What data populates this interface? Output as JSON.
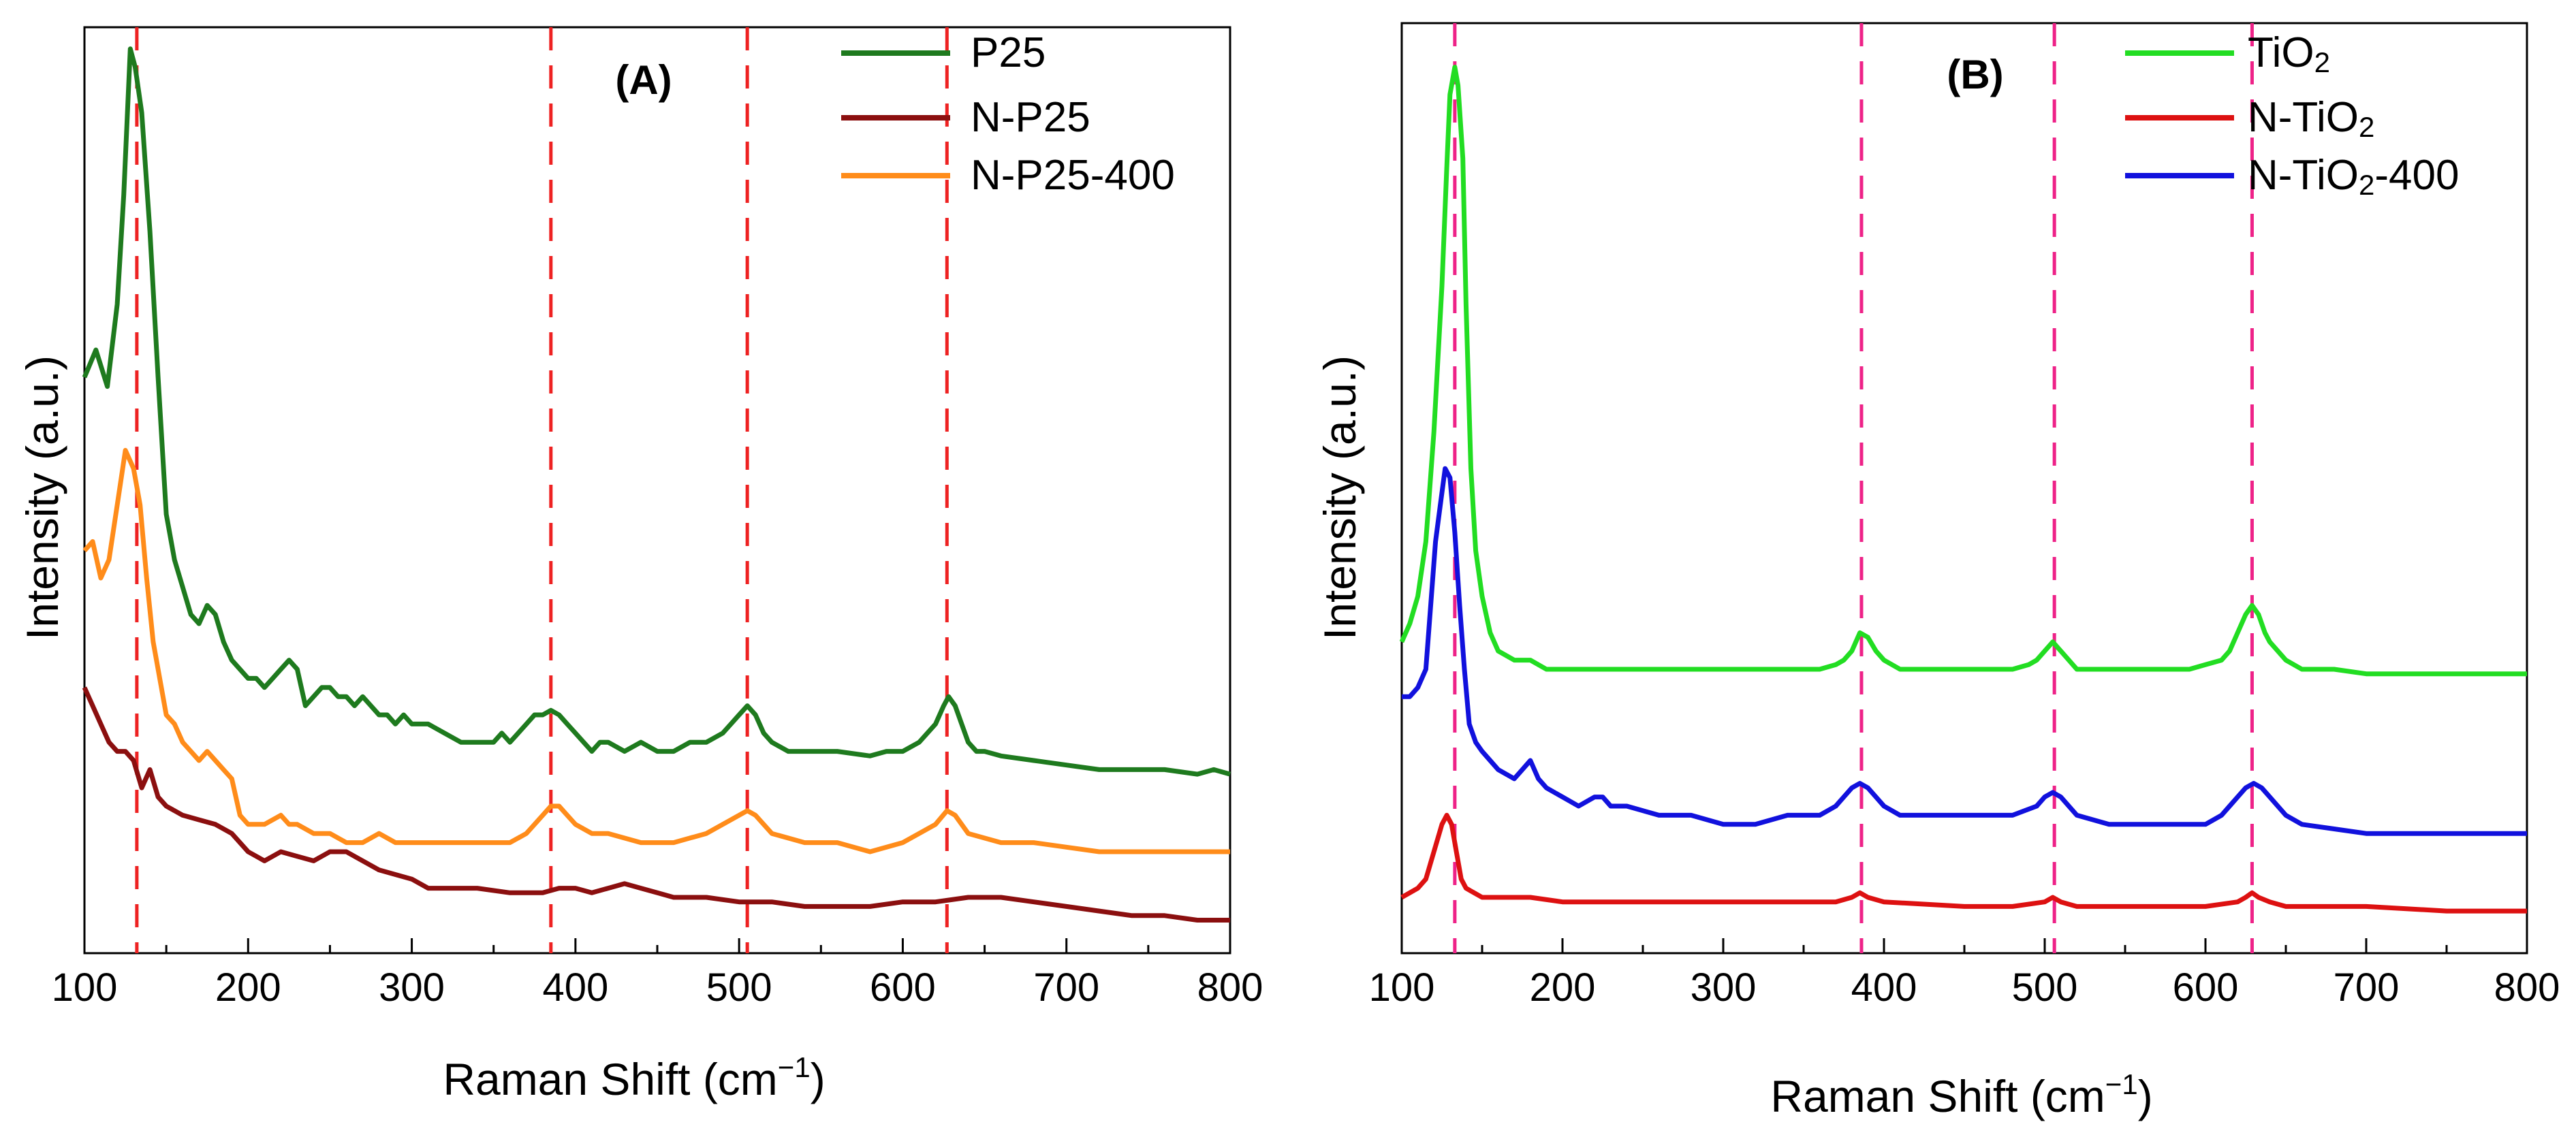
{
  "chart_data": [
    {
      "type": "line",
      "panel_label": "(A)",
      "xlabel_main": "Raman Shift (cm",
      "xlabel_sup": "−1",
      "xlabel_close": ")",
      "ylabel": "Intensity (a.u.)",
      "xlim": [
        100,
        800
      ],
      "ylim": [
        0,
        1
      ],
      "xticks": [
        100,
        200,
        300,
        400,
        500,
        600,
        700,
        800
      ],
      "xtick_labels": [
        "100",
        "200",
        "300",
        "400",
        "500",
        "600",
        "700",
        "800"
      ],
      "yticks_visible": false,
      "grid": false,
      "legend_position": "top-right",
      "reference_lines": {
        "color": "#ee2222",
        "style": "dashed",
        "x": [
          132,
          385,
          505,
          627
        ]
      },
      "series": [
        {
          "name": "P25",
          "color": "#1e7a1e",
          "x": [
            100,
            107,
            114,
            120,
            124,
            128,
            131,
            135,
            140,
            145,
            150,
            155,
            160,
            165,
            170,
            175,
            180,
            185,
            190,
            195,
            200,
            205,
            210,
            215,
            220,
            225,
            230,
            235,
            240,
            245,
            250,
            255,
            260,
            265,
            270,
            275,
            280,
            285,
            290,
            295,
            300,
            310,
            320,
            330,
            340,
            350,
            355,
            360,
            365,
            370,
            375,
            380,
            385,
            390,
            395,
            400,
            405,
            410,
            415,
            420,
            430,
            440,
            450,
            460,
            470,
            480,
            490,
            495,
            500,
            505,
            510,
            515,
            520,
            530,
            540,
            560,
            580,
            590,
            600,
            610,
            615,
            620,
            625,
            628,
            632,
            636,
            640,
            645,
            650,
            660,
            680,
            700,
            720,
            740,
            760,
            780,
            790,
            800
          ],
          "y": [
            0.62,
            0.65,
            0.61,
            0.7,
            0.82,
            0.98,
            0.96,
            0.91,
            0.78,
            0.62,
            0.47,
            0.42,
            0.39,
            0.36,
            0.35,
            0.37,
            0.36,
            0.33,
            0.31,
            0.3,
            0.29,
            0.29,
            0.28,
            0.29,
            0.3,
            0.31,
            0.3,
            0.26,
            0.27,
            0.28,
            0.28,
            0.27,
            0.27,
            0.26,
            0.27,
            0.26,
            0.25,
            0.25,
            0.24,
            0.25,
            0.24,
            0.24,
            0.23,
            0.22,
            0.22,
            0.22,
            0.23,
            0.22,
            0.23,
            0.24,
            0.25,
            0.25,
            0.255,
            0.25,
            0.24,
            0.23,
            0.22,
            0.21,
            0.22,
            0.22,
            0.21,
            0.22,
            0.21,
            0.21,
            0.22,
            0.22,
            0.23,
            0.24,
            0.25,
            0.26,
            0.25,
            0.23,
            0.22,
            0.21,
            0.21,
            0.21,
            0.205,
            0.21,
            0.21,
            0.22,
            0.23,
            0.24,
            0.26,
            0.27,
            0.26,
            0.24,
            0.22,
            0.21,
            0.21,
            0.205,
            0.2,
            0.195,
            0.19,
            0.19,
            0.19,
            0.185,
            0.19,
            0.185
          ]
        },
        {
          "name": "N-P25",
          "color": "#8b0f0f",
          "x": [
            100,
            105,
            110,
            115,
            120,
            125,
            130,
            135,
            140,
            145,
            150,
            160,
            170,
            180,
            190,
            200,
            210,
            220,
            230,
            240,
            250,
            260,
            270,
            280,
            290,
            300,
            310,
            320,
            340,
            360,
            380,
            390,
            400,
            410,
            420,
            430,
            440,
            450,
            460,
            480,
            500,
            520,
            540,
            560,
            580,
            600,
            620,
            640,
            660,
            680,
            700,
            720,
            740,
            760,
            780,
            800
          ],
          "y": [
            0.28,
            0.26,
            0.24,
            0.22,
            0.21,
            0.21,
            0.2,
            0.17,
            0.19,
            0.16,
            0.15,
            0.14,
            0.135,
            0.13,
            0.12,
            0.1,
            0.09,
            0.1,
            0.095,
            0.09,
            0.1,
            0.1,
            0.09,
            0.08,
            0.075,
            0.07,
            0.06,
            0.06,
            0.06,
            0.055,
            0.055,
            0.06,
            0.06,
            0.055,
            0.06,
            0.065,
            0.06,
            0.055,
            0.05,
            0.05,
            0.045,
            0.045,
            0.04,
            0.04,
            0.04,
            0.045,
            0.045,
            0.05,
            0.05,
            0.045,
            0.04,
            0.035,
            0.03,
            0.03,
            0.025,
            0.025
          ]
        },
        {
          "name": "N-P25-400",
          "color": "#ff8c1a",
          "x": [
            100,
            105,
            110,
            115,
            120,
            125,
            130,
            134,
            138,
            142,
            146,
            150,
            155,
            160,
            165,
            170,
            175,
            180,
            185,
            190,
            195,
            200,
            210,
            220,
            225,
            230,
            240,
            250,
            260,
            270,
            280,
            290,
            300,
            320,
            340,
            360,
            370,
            380,
            385,
            390,
            395,
            400,
            410,
            420,
            440,
            460,
            480,
            490,
            500,
            505,
            510,
            520,
            540,
            560,
            580,
            600,
            610,
            620,
            627,
            632,
            640,
            660,
            680,
            700,
            720,
            740,
            760,
            780,
            800
          ],
          "y": [
            0.43,
            0.44,
            0.4,
            0.42,
            0.48,
            0.54,
            0.52,
            0.48,
            0.4,
            0.33,
            0.29,
            0.25,
            0.24,
            0.22,
            0.21,
            0.2,
            0.21,
            0.2,
            0.19,
            0.18,
            0.14,
            0.13,
            0.13,
            0.14,
            0.13,
            0.13,
            0.12,
            0.12,
            0.11,
            0.11,
            0.12,
            0.11,
            0.11,
            0.11,
            0.11,
            0.11,
            0.12,
            0.14,
            0.15,
            0.15,
            0.14,
            0.13,
            0.12,
            0.12,
            0.11,
            0.11,
            0.12,
            0.13,
            0.14,
            0.145,
            0.14,
            0.12,
            0.11,
            0.11,
            0.1,
            0.11,
            0.12,
            0.13,
            0.145,
            0.14,
            0.12,
            0.11,
            0.11,
            0.105,
            0.1,
            0.1,
            0.1,
            0.1,
            0.1
          ]
        }
      ]
    },
    {
      "type": "line",
      "panel_label": "(B)",
      "xlabel_main": "Raman Shift (cm",
      "xlabel_sup": "−1",
      "xlabel_close": ")",
      "ylabel": "Intensity (a.u.)",
      "xlim": [
        100,
        800
      ],
      "ylim": [
        0,
        1
      ],
      "xticks": [
        100,
        200,
        300,
        400,
        500,
        600,
        700,
        800
      ],
      "xtick_labels": [
        "100",
        "200",
        "300",
        "400",
        "500",
        "600",
        "700",
        "800"
      ],
      "yticks_visible": false,
      "grid": false,
      "legend_position": "top-right",
      "reference_lines": {
        "color": "#ee2288",
        "style": "dashed",
        "x": [
          133,
          386,
          506,
          629
        ]
      },
      "series": [
        {
          "name": "TiO₂",
          "legend_base": "TiO",
          "legend_sub": "2",
          "legend_suffix": "",
          "color": "#22dd22",
          "x": [
            100,
            105,
            110,
            115,
            120,
            125,
            128,
            130,
            133,
            135,
            138,
            140,
            143,
            146,
            150,
            155,
            160,
            170,
            180,
            190,
            200,
            250,
            300,
            350,
            360,
            370,
            375,
            380,
            385,
            390,
            395,
            400,
            410,
            420,
            450,
            480,
            490,
            495,
            500,
            505,
            510,
            515,
            520,
            530,
            560,
            590,
            600,
            610,
            615,
            620,
            625,
            629,
            633,
            637,
            640,
            645,
            650,
            660,
            680,
            700,
            750,
            800
          ],
          "y": [
            0.33,
            0.35,
            0.38,
            0.44,
            0.56,
            0.72,
            0.85,
            0.93,
            0.96,
            0.94,
            0.86,
            0.7,
            0.52,
            0.43,
            0.38,
            0.34,
            0.32,
            0.31,
            0.31,
            0.3,
            0.3,
            0.3,
            0.3,
            0.3,
            0.3,
            0.305,
            0.31,
            0.32,
            0.34,
            0.335,
            0.32,
            0.31,
            0.3,
            0.3,
            0.3,
            0.3,
            0.305,
            0.31,
            0.32,
            0.33,
            0.32,
            0.31,
            0.3,
            0.3,
            0.3,
            0.3,
            0.305,
            0.31,
            0.32,
            0.34,
            0.36,
            0.37,
            0.36,
            0.34,
            0.33,
            0.32,
            0.31,
            0.3,
            0.3,
            0.295,
            0.295,
            0.295
          ]
        },
        {
          "name": "N-TiO₂",
          "legend_base": "N-TiO",
          "legend_sub": "2",
          "legend_suffix": "",
          "color": "#dd1111",
          "x": [
            100,
            105,
            110,
            115,
            120,
            125,
            128,
            131,
            134,
            137,
            140,
            145,
            150,
            160,
            180,
            200,
            250,
            300,
            350,
            370,
            380,
            385,
            390,
            400,
            450,
            480,
            500,
            505,
            510,
            520,
            550,
            600,
            620,
            625,
            629,
            633,
            640,
            650,
            700,
            750,
            800
          ],
          "y": [
            0.05,
            0.055,
            0.06,
            0.07,
            0.1,
            0.13,
            0.14,
            0.13,
            0.1,
            0.07,
            0.06,
            0.055,
            0.05,
            0.05,
            0.05,
            0.045,
            0.045,
            0.045,
            0.045,
            0.045,
            0.05,
            0.055,
            0.05,
            0.045,
            0.04,
            0.04,
            0.045,
            0.05,
            0.045,
            0.04,
            0.04,
            0.04,
            0.045,
            0.05,
            0.055,
            0.05,
            0.045,
            0.04,
            0.04,
            0.035,
            0.035
          ]
        },
        {
          "name": "N-TiO₂-400",
          "legend_base": "N-TiO",
          "legend_sub": "2",
          "legend_suffix": "-400",
          "color": "#1111dd",
          "x": [
            100,
            105,
            110,
            115,
            118,
            121,
            124,
            127,
            130,
            133,
            136,
            139,
            142,
            146,
            150,
            155,
            160,
            170,
            175,
            180,
            185,
            190,
            200,
            210,
            220,
            225,
            230,
            240,
            260,
            280,
            300,
            320,
            340,
            360,
            370,
            375,
            380,
            385,
            390,
            395,
            400,
            410,
            430,
            460,
            480,
            495,
            500,
            505,
            510,
            520,
            540,
            580,
            600,
            610,
            615,
            620,
            625,
            630,
            635,
            640,
            650,
            660,
            700,
            750,
            800
          ],
          "y": [
            0.27,
            0.27,
            0.28,
            0.3,
            0.37,
            0.44,
            0.48,
            0.52,
            0.51,
            0.45,
            0.37,
            0.3,
            0.24,
            0.22,
            0.21,
            0.2,
            0.19,
            0.18,
            0.19,
            0.2,
            0.18,
            0.17,
            0.16,
            0.15,
            0.16,
            0.16,
            0.15,
            0.15,
            0.14,
            0.14,
            0.13,
            0.13,
            0.14,
            0.14,
            0.15,
            0.16,
            0.17,
            0.175,
            0.17,
            0.16,
            0.15,
            0.14,
            0.14,
            0.14,
            0.14,
            0.15,
            0.16,
            0.165,
            0.16,
            0.14,
            0.13,
            0.13,
            0.13,
            0.14,
            0.15,
            0.16,
            0.17,
            0.175,
            0.17,
            0.16,
            0.14,
            0.13,
            0.12,
            0.12,
            0.12
          ]
        }
      ]
    }
  ]
}
